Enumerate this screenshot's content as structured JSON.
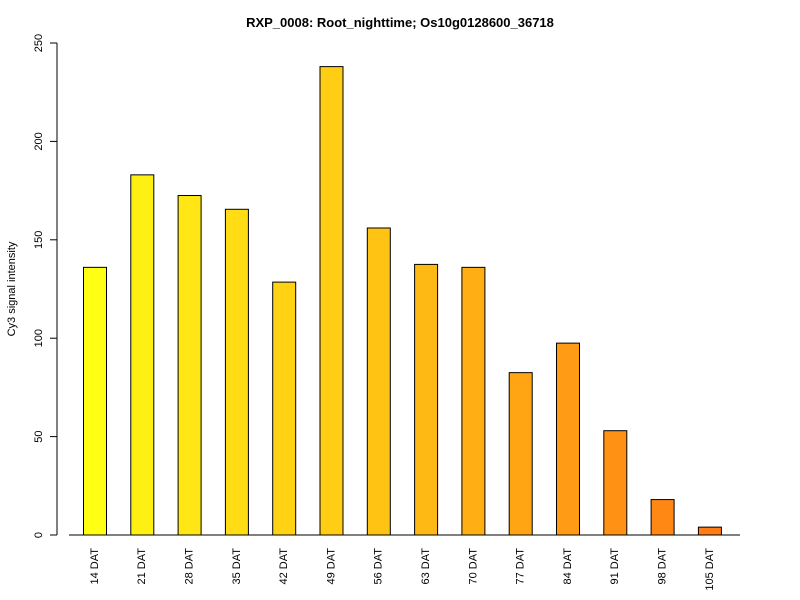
{
  "chart_data": {
    "type": "bar",
    "title": "RXP_0008: Root_nighttime; Os10g0128600_36718",
    "xlabel": "",
    "ylabel": "Cy3 signal intensity",
    "ylim": [
      0,
      250
    ],
    "yticks": [
      0,
      50,
      100,
      150,
      200,
      250
    ],
    "grid": false,
    "categories": [
      "14 DAT",
      "21 DAT",
      "28 DAT",
      "35 DAT",
      "42 DAT",
      "49 DAT",
      "56 DAT",
      "63 DAT",
      "70 DAT",
      "77 DAT",
      "84 DAT",
      "91 DAT",
      "98 DAT",
      "105 DAT"
    ],
    "values": [
      136,
      183,
      172.5,
      165.5,
      128.5,
      238,
      156,
      137.5,
      136,
      82.5,
      97.5,
      53,
      18,
      4
    ],
    "colors": [
      "#FFFF14",
      "#FFF014",
      "#FFE614",
      "#FFDC14",
      "#FFD214",
      "#FFCD14",
      "#FFC314",
      "#FFB914",
      "#FFAF14",
      "#FFA514",
      "#FF9B14",
      "#FF9114",
      "#FF8714",
      "#FF7D14"
    ]
  }
}
